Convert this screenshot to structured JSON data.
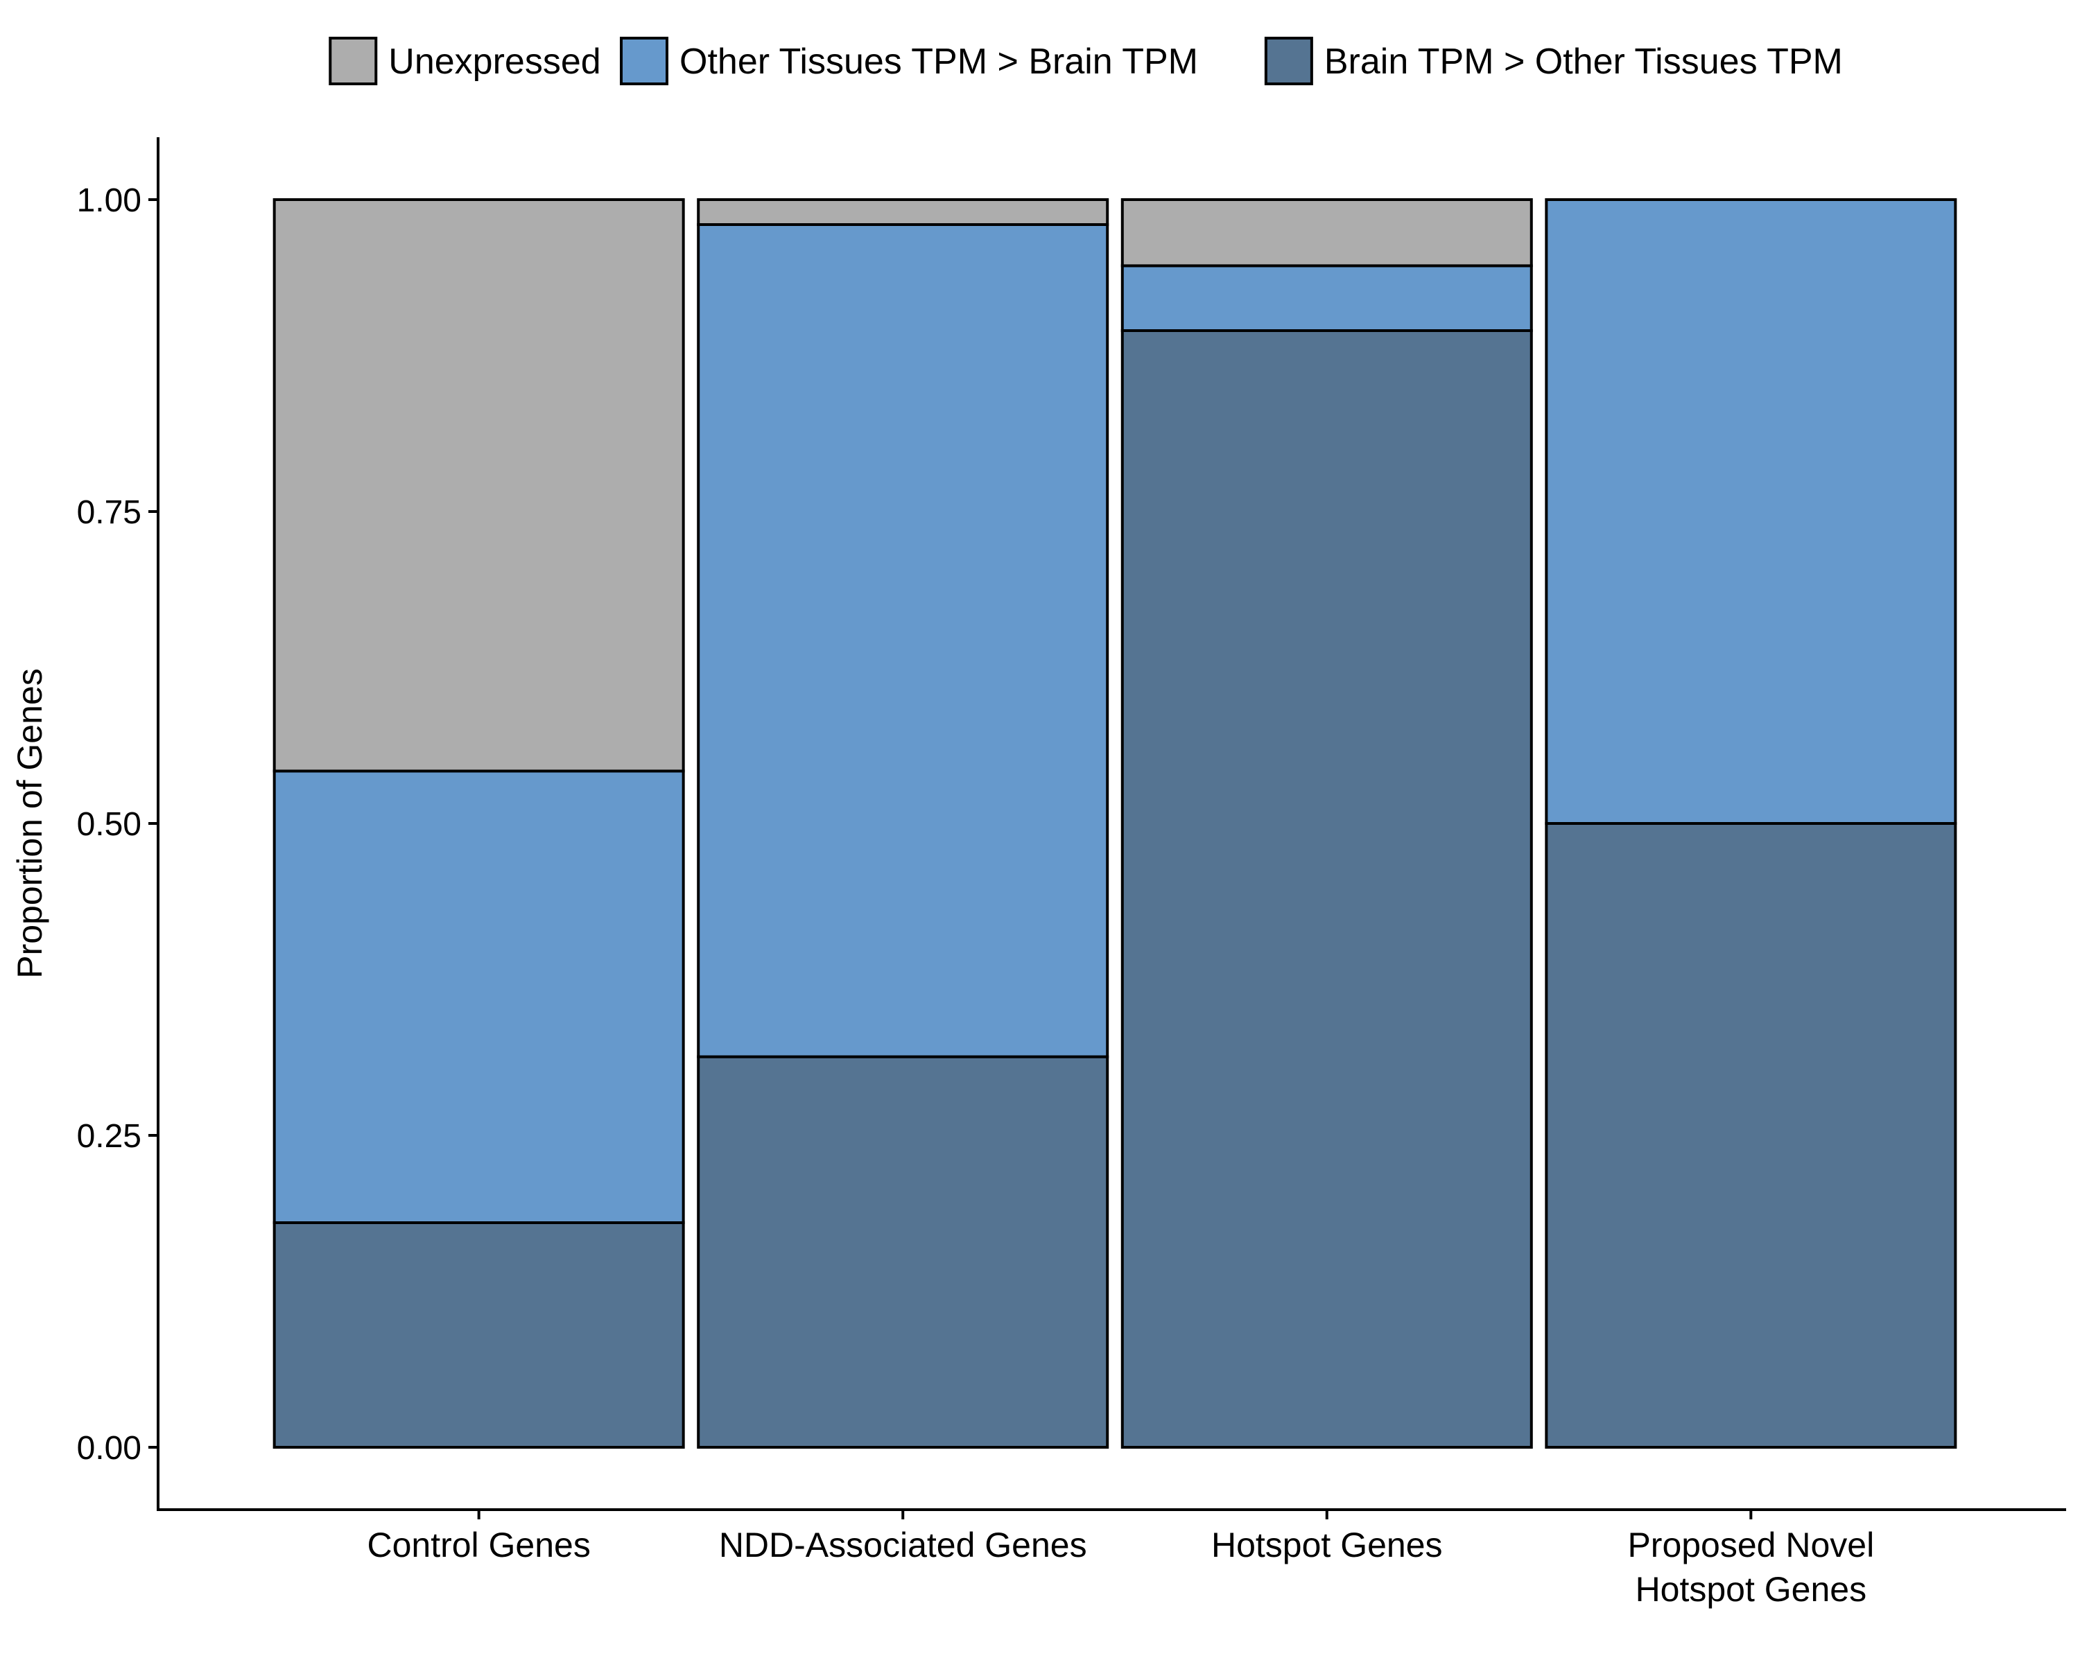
{
  "chart_data": {
    "type": "bar",
    "stacked": true,
    "ylabel": "Proportion of Genes",
    "xlabel": "",
    "ylim": [
      -0.05,
      1.05
    ],
    "y_ticks": [
      0.0,
      0.25,
      0.5,
      0.75,
      1.0
    ],
    "y_tick_labels": [
      "0.00",
      "0.25",
      "0.50",
      "0.75",
      "1.00"
    ],
    "grid": false,
    "legend_position": "top",
    "categories": [
      [
        "Control Genes"
      ],
      [
        "NDD-Associated Genes"
      ],
      [
        "Hotspot Genes"
      ],
      [
        "Proposed Novel",
        "Hotspot Genes"
      ]
    ],
    "series": [
      {
        "name": "Unexpressed",
        "color": "#adadad",
        "values": [
          0.458,
          0.02,
          0.053,
          0.0
        ]
      },
      {
        "name": "Other Tissues TPM > Brain TPM",
        "color": "#6699cc",
        "values": [
          0.362,
          0.667,
          0.052,
          0.5
        ]
      },
      {
        "name": "Brain TPM > Other Tissues TPM",
        "color": "#557492",
        "values": [
          0.18,
          0.313,
          0.895,
          0.5
        ]
      }
    ],
    "legend_order": [
      0,
      1,
      2
    ],
    "stack_order_bottom_to_top": [
      2,
      1,
      0
    ]
  }
}
